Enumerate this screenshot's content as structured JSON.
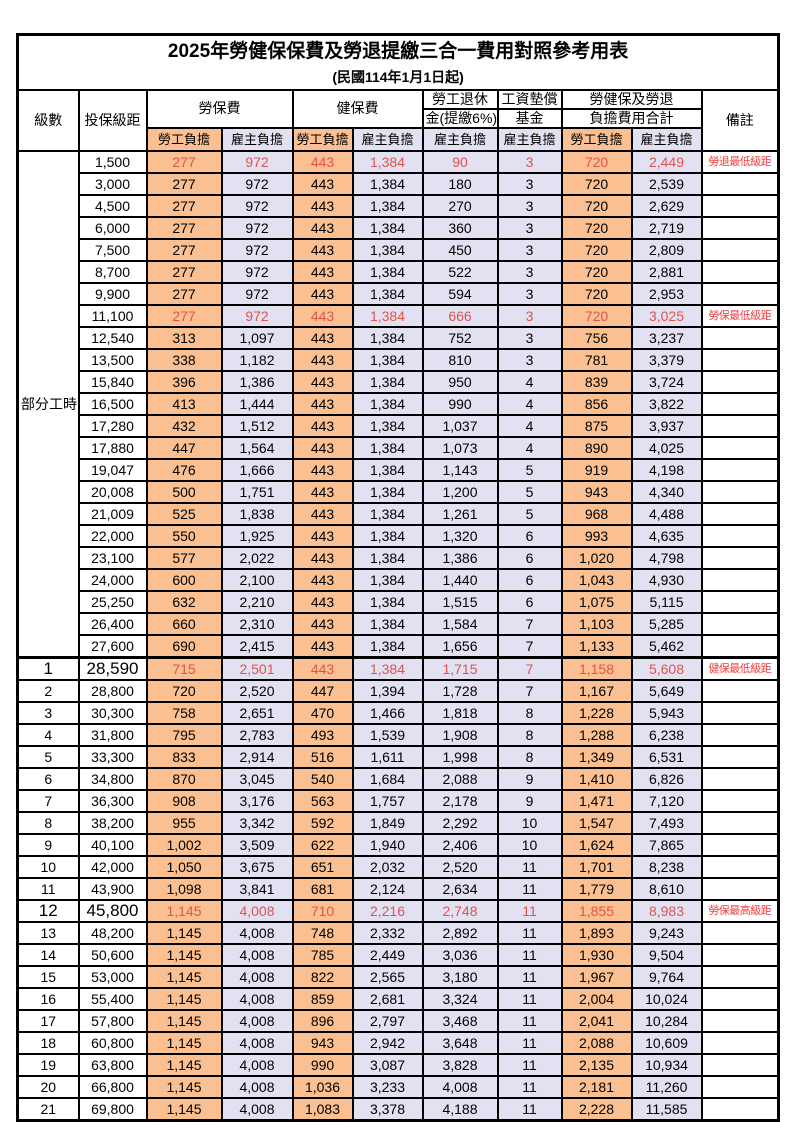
{
  "title": "2025年勞健保保費及勞退提繳三合一費用對照參考用表",
  "subtitle": "(民國114年1月1日起)",
  "header": {
    "level": "級數",
    "salary_bracket": "投保級距",
    "labor_insurance": "勞保費",
    "health_insurance": "健保費",
    "pension_line1": "勞工退休",
    "pension_line2": "金(提繳6%)",
    "wage_fund_line1": "工資墊償",
    "wage_fund_line2": "基金",
    "total_line1": "勞健保及勞退",
    "total_line2": "負擔費用合計",
    "remarks": "備註",
    "employee_label": "勞工負擔",
    "employer_label": "雇主負擔"
  },
  "part_time_label": "部分工時",
  "colors": {
    "employee_bg": "#FAC091",
    "employer_bg": "#E2E1F2",
    "highlight_text": "#E0534D",
    "remark_text": "#F43C3C"
  },
  "rows": [
    {
      "level": "",
      "salary": "1,500",
      "li_emp": "277",
      "li_er": "972",
      "hi_emp": "443",
      "hi_er": "1,384",
      "pension": "90",
      "wage_fund": "3",
      "tot_emp": "720",
      "tot_er": "2,449",
      "remark": "勞退最低級距",
      "highlight": true,
      "big": false
    },
    {
      "level": "",
      "salary": "3,000",
      "li_emp": "277",
      "li_er": "972",
      "hi_emp": "443",
      "hi_er": "1,384",
      "pension": "180",
      "wage_fund": "3",
      "tot_emp": "720",
      "tot_er": "2,539",
      "remark": "",
      "highlight": false,
      "big": false
    },
    {
      "level": "",
      "salary": "4,500",
      "li_emp": "277",
      "li_er": "972",
      "hi_emp": "443",
      "hi_er": "1,384",
      "pension": "270",
      "wage_fund": "3",
      "tot_emp": "720",
      "tot_er": "2,629",
      "remark": "",
      "highlight": false,
      "big": false
    },
    {
      "level": "",
      "salary": "6,000",
      "li_emp": "277",
      "li_er": "972",
      "hi_emp": "443",
      "hi_er": "1,384",
      "pension": "360",
      "wage_fund": "3",
      "tot_emp": "720",
      "tot_er": "2,719",
      "remark": "",
      "highlight": false,
      "big": false
    },
    {
      "level": "",
      "salary": "7,500",
      "li_emp": "277",
      "li_er": "972",
      "hi_emp": "443",
      "hi_er": "1,384",
      "pension": "450",
      "wage_fund": "3",
      "tot_emp": "720",
      "tot_er": "2,809",
      "remark": "",
      "highlight": false,
      "big": false
    },
    {
      "level": "",
      "salary": "8,700",
      "li_emp": "277",
      "li_er": "972",
      "hi_emp": "443",
      "hi_er": "1,384",
      "pension": "522",
      "wage_fund": "3",
      "tot_emp": "720",
      "tot_er": "2,881",
      "remark": "",
      "highlight": false,
      "big": false
    },
    {
      "level": "",
      "salary": "9,900",
      "li_emp": "277",
      "li_er": "972",
      "hi_emp": "443",
      "hi_er": "1,384",
      "pension": "594",
      "wage_fund": "3",
      "tot_emp": "720",
      "tot_er": "2,953",
      "remark": "",
      "highlight": false,
      "big": false
    },
    {
      "level": "",
      "salary": "11,100",
      "li_emp": "277",
      "li_er": "972",
      "hi_emp": "443",
      "hi_er": "1,384",
      "pension": "666",
      "wage_fund": "3",
      "tot_emp": "720",
      "tot_er": "3,025",
      "remark": "勞保最低級距",
      "highlight": true,
      "big": false
    },
    {
      "level": "",
      "salary": "12,540",
      "li_emp": "313",
      "li_er": "1,097",
      "hi_emp": "443",
      "hi_er": "1,384",
      "pension": "752",
      "wage_fund": "3",
      "tot_emp": "756",
      "tot_er": "3,237",
      "remark": "",
      "highlight": false,
      "big": false
    },
    {
      "level": "",
      "salary": "13,500",
      "li_emp": "338",
      "li_er": "1,182",
      "hi_emp": "443",
      "hi_er": "1,384",
      "pension": "810",
      "wage_fund": "3",
      "tot_emp": "781",
      "tot_er": "3,379",
      "remark": "",
      "highlight": false,
      "big": false
    },
    {
      "level": "",
      "salary": "15,840",
      "li_emp": "396",
      "li_er": "1,386",
      "hi_emp": "443",
      "hi_er": "1,384",
      "pension": "950",
      "wage_fund": "4",
      "tot_emp": "839",
      "tot_er": "3,724",
      "remark": "",
      "highlight": false,
      "big": false
    },
    {
      "level": "",
      "salary": "16,500",
      "li_emp": "413",
      "li_er": "1,444",
      "hi_emp": "443",
      "hi_er": "1,384",
      "pension": "990",
      "wage_fund": "4",
      "tot_emp": "856",
      "tot_er": "3,822",
      "remark": "",
      "highlight": false,
      "big": false
    },
    {
      "level": "",
      "salary": "17,280",
      "li_emp": "432",
      "li_er": "1,512",
      "hi_emp": "443",
      "hi_er": "1,384",
      "pension": "1,037",
      "wage_fund": "4",
      "tot_emp": "875",
      "tot_er": "3,937",
      "remark": "",
      "highlight": false,
      "big": false
    },
    {
      "level": "",
      "salary": "17,880",
      "li_emp": "447",
      "li_er": "1,564",
      "hi_emp": "443",
      "hi_er": "1,384",
      "pension": "1,073",
      "wage_fund": "4",
      "tot_emp": "890",
      "tot_er": "4,025",
      "remark": "",
      "highlight": false,
      "big": false
    },
    {
      "level": "",
      "salary": "19,047",
      "li_emp": "476",
      "li_er": "1,666",
      "hi_emp": "443",
      "hi_er": "1,384",
      "pension": "1,143",
      "wage_fund": "5",
      "tot_emp": "919",
      "tot_er": "4,198",
      "remark": "",
      "highlight": false,
      "big": false
    },
    {
      "level": "",
      "salary": "20,008",
      "li_emp": "500",
      "li_er": "1,751",
      "hi_emp": "443",
      "hi_er": "1,384",
      "pension": "1,200",
      "wage_fund": "5",
      "tot_emp": "943",
      "tot_er": "4,340",
      "remark": "",
      "highlight": false,
      "big": false
    },
    {
      "level": "",
      "salary": "21,009",
      "li_emp": "525",
      "li_er": "1,838",
      "hi_emp": "443",
      "hi_er": "1,384",
      "pension": "1,261",
      "wage_fund": "5",
      "tot_emp": "968",
      "tot_er": "4,488",
      "remark": "",
      "highlight": false,
      "big": false
    },
    {
      "level": "",
      "salary": "22,000",
      "li_emp": "550",
      "li_er": "1,925",
      "hi_emp": "443",
      "hi_er": "1,384",
      "pension": "1,320",
      "wage_fund": "6",
      "tot_emp": "993",
      "tot_er": "4,635",
      "remark": "",
      "highlight": false,
      "big": false
    },
    {
      "level": "",
      "salary": "23,100",
      "li_emp": "577",
      "li_er": "2,022",
      "hi_emp": "443",
      "hi_er": "1,384",
      "pension": "1,386",
      "wage_fund": "6",
      "tot_emp": "1,020",
      "tot_er": "4,798",
      "remark": "",
      "highlight": false,
      "big": false
    },
    {
      "level": "",
      "salary": "24,000",
      "li_emp": "600",
      "li_er": "2,100",
      "hi_emp": "443",
      "hi_er": "1,384",
      "pension": "1,440",
      "wage_fund": "6",
      "tot_emp": "1,043",
      "tot_er": "4,930",
      "remark": "",
      "highlight": false,
      "big": false
    },
    {
      "level": "",
      "salary": "25,250",
      "li_emp": "632",
      "li_er": "2,210",
      "hi_emp": "443",
      "hi_er": "1,384",
      "pension": "1,515",
      "wage_fund": "6",
      "tot_emp": "1,075",
      "tot_er": "5,115",
      "remark": "",
      "highlight": false,
      "big": false
    },
    {
      "level": "",
      "salary": "26,400",
      "li_emp": "660",
      "li_er": "2,310",
      "hi_emp": "443",
      "hi_er": "1,384",
      "pension": "1,584",
      "wage_fund": "7",
      "tot_emp": "1,103",
      "tot_er": "5,285",
      "remark": "",
      "highlight": false,
      "big": false
    },
    {
      "level": "",
      "salary": "27,600",
      "li_emp": "690",
      "li_er": "2,415",
      "hi_emp": "443",
      "hi_er": "1,384",
      "pension": "1,656",
      "wage_fund": "7",
      "tot_emp": "1,133",
      "tot_er": "5,462",
      "remark": "",
      "highlight": false,
      "big": false
    },
    {
      "level": "1",
      "salary": "28,590",
      "li_emp": "715",
      "li_er": "2,501",
      "hi_emp": "443",
      "hi_er": "1,384",
      "pension": "1,715",
      "wage_fund": "7",
      "tot_emp": "1,158",
      "tot_er": "5,608",
      "remark": "健保最低級距",
      "highlight": true,
      "big": true
    },
    {
      "level": "2",
      "salary": "28,800",
      "li_emp": "720",
      "li_er": "2,520",
      "hi_emp": "447",
      "hi_er": "1,394",
      "pension": "1,728",
      "wage_fund": "7",
      "tot_emp": "1,167",
      "tot_er": "5,649",
      "remark": "",
      "highlight": false,
      "big": false
    },
    {
      "level": "3",
      "salary": "30,300",
      "li_emp": "758",
      "li_er": "2,651",
      "hi_emp": "470",
      "hi_er": "1,466",
      "pension": "1,818",
      "wage_fund": "8",
      "tot_emp": "1,228",
      "tot_er": "5,943",
      "remark": "",
      "highlight": false,
      "big": false
    },
    {
      "level": "4",
      "salary": "31,800",
      "li_emp": "795",
      "li_er": "2,783",
      "hi_emp": "493",
      "hi_er": "1,539",
      "pension": "1,908",
      "wage_fund": "8",
      "tot_emp": "1,288",
      "tot_er": "6,238",
      "remark": "",
      "highlight": false,
      "big": false
    },
    {
      "level": "5",
      "salary": "33,300",
      "li_emp": "833",
      "li_er": "2,914",
      "hi_emp": "516",
      "hi_er": "1,611",
      "pension": "1,998",
      "wage_fund": "8",
      "tot_emp": "1,349",
      "tot_er": "6,531",
      "remark": "",
      "highlight": false,
      "big": false
    },
    {
      "level": "6",
      "salary": "34,800",
      "li_emp": "870",
      "li_er": "3,045",
      "hi_emp": "540",
      "hi_er": "1,684",
      "pension": "2,088",
      "wage_fund": "9",
      "tot_emp": "1,410",
      "tot_er": "6,826",
      "remark": "",
      "highlight": false,
      "big": false
    },
    {
      "level": "7",
      "salary": "36,300",
      "li_emp": "908",
      "li_er": "3,176",
      "hi_emp": "563",
      "hi_er": "1,757",
      "pension": "2,178",
      "wage_fund": "9",
      "tot_emp": "1,471",
      "tot_er": "7,120",
      "remark": "",
      "highlight": false,
      "big": false
    },
    {
      "level": "8",
      "salary": "38,200",
      "li_emp": "955",
      "li_er": "3,342",
      "hi_emp": "592",
      "hi_er": "1,849",
      "pension": "2,292",
      "wage_fund": "10",
      "tot_emp": "1,547",
      "tot_er": "7,493",
      "remark": "",
      "highlight": false,
      "big": false
    },
    {
      "level": "9",
      "salary": "40,100",
      "li_emp": "1,002",
      "li_er": "3,509",
      "hi_emp": "622",
      "hi_er": "1,940",
      "pension": "2,406",
      "wage_fund": "10",
      "tot_emp": "1,624",
      "tot_er": "7,865",
      "remark": "",
      "highlight": false,
      "big": false
    },
    {
      "level": "10",
      "salary": "42,000",
      "li_emp": "1,050",
      "li_er": "3,675",
      "hi_emp": "651",
      "hi_er": "2,032",
      "pension": "2,520",
      "wage_fund": "11",
      "tot_emp": "1,701",
      "tot_er": "8,238",
      "remark": "",
      "highlight": false,
      "big": false
    },
    {
      "level": "11",
      "salary": "43,900",
      "li_emp": "1,098",
      "li_er": "3,841",
      "hi_emp": "681",
      "hi_er": "2,124",
      "pension": "2,634",
      "wage_fund": "11",
      "tot_emp": "1,779",
      "tot_er": "8,610",
      "remark": "",
      "highlight": false,
      "big": false
    },
    {
      "level": "12",
      "salary": "45,800",
      "li_emp": "1,145",
      "li_er": "4,008",
      "hi_emp": "710",
      "hi_er": "2,216",
      "pension": "2,748",
      "wage_fund": "11",
      "tot_emp": "1,855",
      "tot_er": "8,983",
      "remark": "勞保最高級距",
      "highlight": true,
      "big": true
    },
    {
      "level": "13",
      "salary": "48,200",
      "li_emp": "1,145",
      "li_er": "4,008",
      "hi_emp": "748",
      "hi_er": "2,332",
      "pension": "2,892",
      "wage_fund": "11",
      "tot_emp": "1,893",
      "tot_er": "9,243",
      "remark": "",
      "highlight": false,
      "big": false
    },
    {
      "level": "14",
      "salary": "50,600",
      "li_emp": "1,145",
      "li_er": "4,008",
      "hi_emp": "785",
      "hi_er": "2,449",
      "pension": "3,036",
      "wage_fund": "11",
      "tot_emp": "1,930",
      "tot_er": "9,504",
      "remark": "",
      "highlight": false,
      "big": false
    },
    {
      "level": "15",
      "salary": "53,000",
      "li_emp": "1,145",
      "li_er": "4,008",
      "hi_emp": "822",
      "hi_er": "2,565",
      "pension": "3,180",
      "wage_fund": "11",
      "tot_emp": "1,967",
      "tot_er": "9,764",
      "remark": "",
      "highlight": false,
      "big": false
    },
    {
      "level": "16",
      "salary": "55,400",
      "li_emp": "1,145",
      "li_er": "4,008",
      "hi_emp": "859",
      "hi_er": "2,681",
      "pension": "3,324",
      "wage_fund": "11",
      "tot_emp": "2,004",
      "tot_er": "10,024",
      "remark": "",
      "highlight": false,
      "big": false
    },
    {
      "level": "17",
      "salary": "57,800",
      "li_emp": "1,145",
      "li_er": "4,008",
      "hi_emp": "896",
      "hi_er": "2,797",
      "pension": "3,468",
      "wage_fund": "11",
      "tot_emp": "2,041",
      "tot_er": "10,284",
      "remark": "",
      "highlight": false,
      "big": false
    },
    {
      "level": "18",
      "salary": "60,800",
      "li_emp": "1,145",
      "li_er": "4,008",
      "hi_emp": "943",
      "hi_er": "2,942",
      "pension": "3,648",
      "wage_fund": "11",
      "tot_emp": "2,088",
      "tot_er": "10,609",
      "remark": "",
      "highlight": false,
      "big": false
    },
    {
      "level": "19",
      "salary": "63,800",
      "li_emp": "1,145",
      "li_er": "4,008",
      "hi_emp": "990",
      "hi_er": "3,087",
      "pension": "3,828",
      "wage_fund": "11",
      "tot_emp": "2,135",
      "tot_er": "10,934",
      "remark": "",
      "highlight": false,
      "big": false
    },
    {
      "level": "20",
      "salary": "66,800",
      "li_emp": "1,145",
      "li_er": "4,008",
      "hi_emp": "1,036",
      "hi_er": "3,233",
      "pension": "4,008",
      "wage_fund": "11",
      "tot_emp": "2,181",
      "tot_er": "11,260",
      "remark": "",
      "highlight": false,
      "big": false
    },
    {
      "level": "21",
      "salary": "69,800",
      "li_emp": "1,145",
      "li_er": "4,008",
      "hi_emp": "1,083",
      "hi_er": "3,378",
      "pension": "4,188",
      "wage_fund": "11",
      "tot_emp": "2,228",
      "tot_er": "11,585",
      "remark": "",
      "highlight": false,
      "big": false
    }
  ]
}
